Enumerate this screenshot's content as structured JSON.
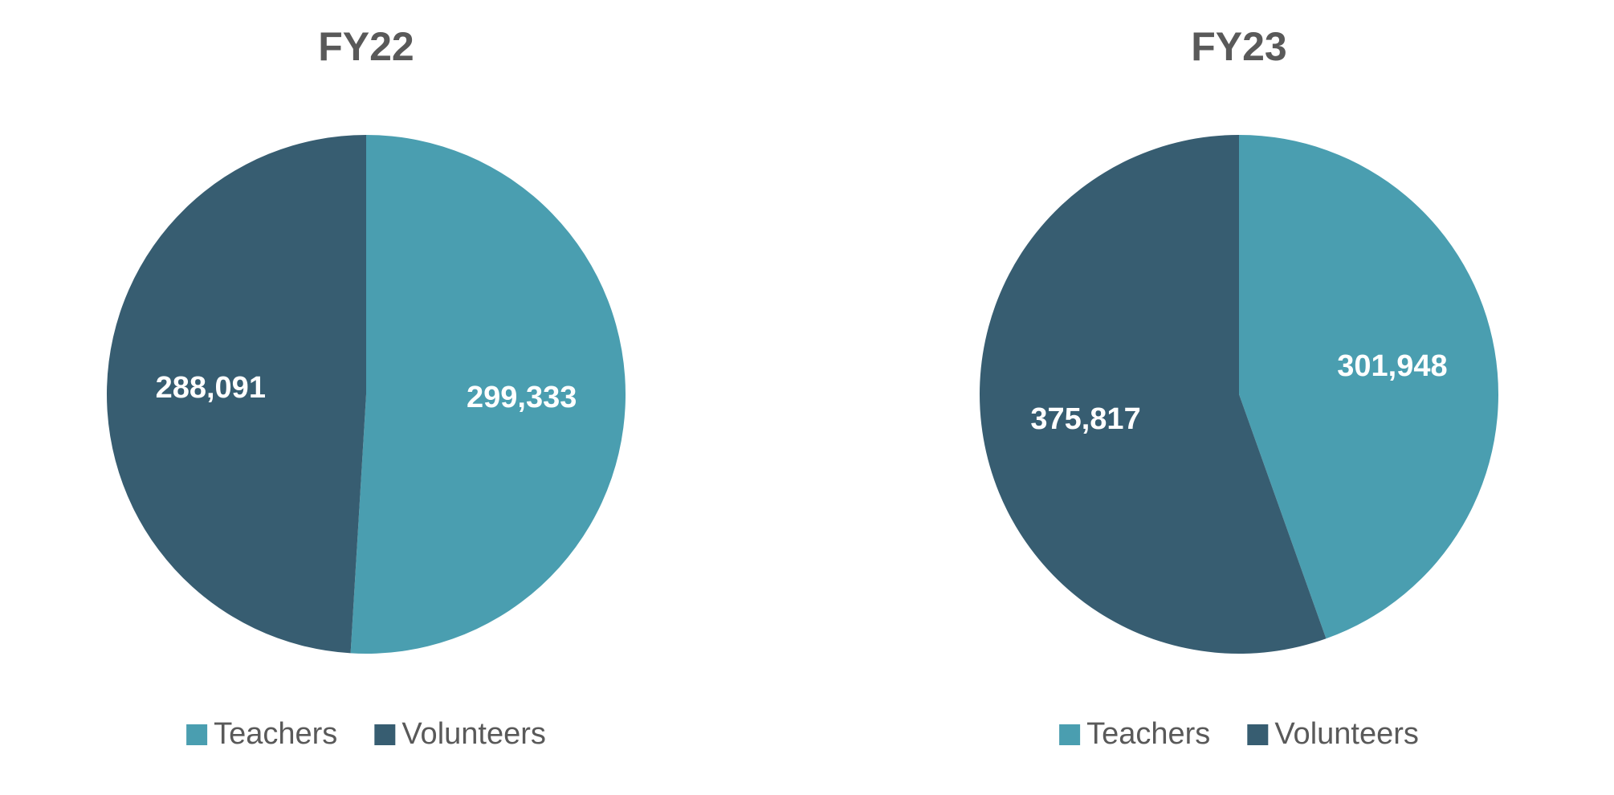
{
  "chart_data": [
    {
      "type": "pie",
      "title": "FY22",
      "categories": [
        "Teachers",
        "Volunteers"
      ],
      "values": [
        299333,
        288091
      ],
      "value_labels": [
        "299,333",
        "288,091"
      ],
      "colors": [
        "#4a9eb0",
        "#375d71"
      ]
    },
    {
      "type": "pie",
      "title": "FY23",
      "categories": [
        "Teachers",
        "Volunteers"
      ],
      "values": [
        301948,
        375817
      ],
      "value_labels": [
        "301,948",
        "375,817"
      ],
      "colors": [
        "#4a9eb0",
        "#375d71"
      ]
    }
  ]
}
